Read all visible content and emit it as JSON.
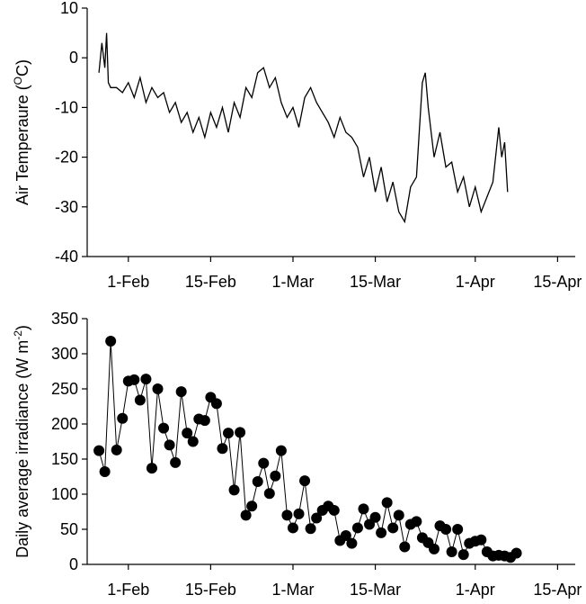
{
  "chart_data": [
    {
      "type": "line",
      "color": "#000000",
      "y_label": [
        "Air Temperaure (",
        "O",
        "C)"
      ],
      "xlim": [
        25,
        108
      ],
      "xticks": [
        {
          "value": 32,
          "label": "1-Feb"
        },
        {
          "value": 46,
          "label": "15-Feb"
        },
        {
          "value": 60,
          "label": "1-Mar"
        },
        {
          "value": 74,
          "label": "15-Mar"
        },
        {
          "value": 91,
          "label": "1-Apr"
        },
        {
          "value": 105,
          "label": "15-Apr"
        }
      ],
      "ylim": [
        -40,
        10
      ],
      "yticks": [
        -40,
        -30,
        -20,
        -10,
        0,
        10
      ],
      "x": [
        27,
        27.5,
        28,
        28.3,
        28.6,
        29,
        30,
        31,
        32,
        33,
        34,
        35,
        36,
        37,
        38,
        39,
        40,
        41,
        42,
        43,
        44,
        45,
        46,
        47,
        48,
        49,
        50,
        51,
        52,
        53,
        54,
        55,
        56,
        57,
        58,
        59,
        60,
        61,
        62,
        63,
        64,
        65,
        66,
        67,
        68,
        69,
        70,
        71,
        72,
        73,
        74,
        75,
        76,
        77,
        78,
        79,
        80,
        81,
        82,
        82.5,
        83,
        84,
        85,
        86,
        87,
        88,
        89,
        90,
        91,
        92,
        93,
        94,
        95,
        95.5,
        96,
        96.5
      ],
      "values": [
        -3,
        3,
        -2,
        5,
        -5,
        -6,
        -6,
        -7,
        -5,
        -8,
        -4,
        -9,
        -6,
        -8,
        -7,
        -11,
        -9,
        -13,
        -11,
        -15,
        -12,
        -16,
        -11,
        -14,
        -10,
        -15,
        -9,
        -12,
        -6,
        -8,
        -3,
        -2,
        -6,
        -4,
        -9,
        -12,
        -10,
        -14,
        -8,
        -6,
        -9,
        -11,
        -13,
        -16,
        -12,
        -15,
        -16,
        -18,
        -24,
        -20,
        -27,
        -22,
        -29,
        -25,
        -31,
        -33,
        -26,
        -24,
        -5,
        -3,
        -10,
        -20,
        -15,
        -22,
        -21,
        -27,
        -24,
        -30,
        -26,
        -31,
        -28,
        -25,
        -14,
        -20,
        -17,
        -27
      ]
    },
    {
      "type": "line",
      "markers": true,
      "color": "#000000",
      "y_label": [
        "Daily average irradiance (W m",
        "-2",
        ")"
      ],
      "xlim": [
        25,
        108
      ],
      "xticks": [
        {
          "value": 32,
          "label": "1-Feb"
        },
        {
          "value": 46,
          "label": "15-Feb"
        },
        {
          "value": 60,
          "label": "1-Mar"
        },
        {
          "value": 74,
          "label": "15-Mar"
        },
        {
          "value": 91,
          "label": "1-Apr"
        },
        {
          "value": 105,
          "label": "15-Apr"
        }
      ],
      "ylim": [
        0,
        350
      ],
      "yticks": [
        0,
        50,
        100,
        150,
        200,
        250,
        300,
        350
      ],
      "x": [
        27,
        28,
        29,
        30,
        31,
        32,
        33,
        34,
        35,
        36,
        37,
        38,
        39,
        40,
        41,
        42,
        43,
        44,
        45,
        46,
        47,
        48,
        49,
        50,
        51,
        52,
        53,
        54,
        55,
        56,
        57,
        58,
        59,
        60,
        61,
        62,
        63,
        64,
        65,
        66,
        67,
        68,
        69,
        70,
        71,
        72,
        73,
        74,
        75,
        76,
        77,
        78,
        79,
        80,
        81,
        82,
        83,
        84,
        85,
        86,
        87,
        88,
        89,
        90,
        91,
        92,
        93,
        94,
        95,
        96,
        97,
        98
      ],
      "values": [
        162,
        132,
        318,
        163,
        208,
        261,
        263,
        234,
        264,
        137,
        250,
        194,
        170,
        145,
        246,
        187,
        175,
        207,
        205,
        238,
        229,
        165,
        187,
        106,
        188,
        70,
        83,
        118,
        144,
        101,
        126,
        162,
        70,
        52,
        72,
        119,
        51,
        66,
        77,
        83,
        77,
        34,
        41,
        30,
        52,
        79,
        57,
        67,
        45,
        88,
        52,
        70,
        25,
        57,
        61,
        38,
        31,
        22,
        55,
        50,
        18,
        50,
        14,
        30,
        33,
        35,
        18,
        12,
        13,
        12,
        10,
        16
      ]
    }
  ]
}
